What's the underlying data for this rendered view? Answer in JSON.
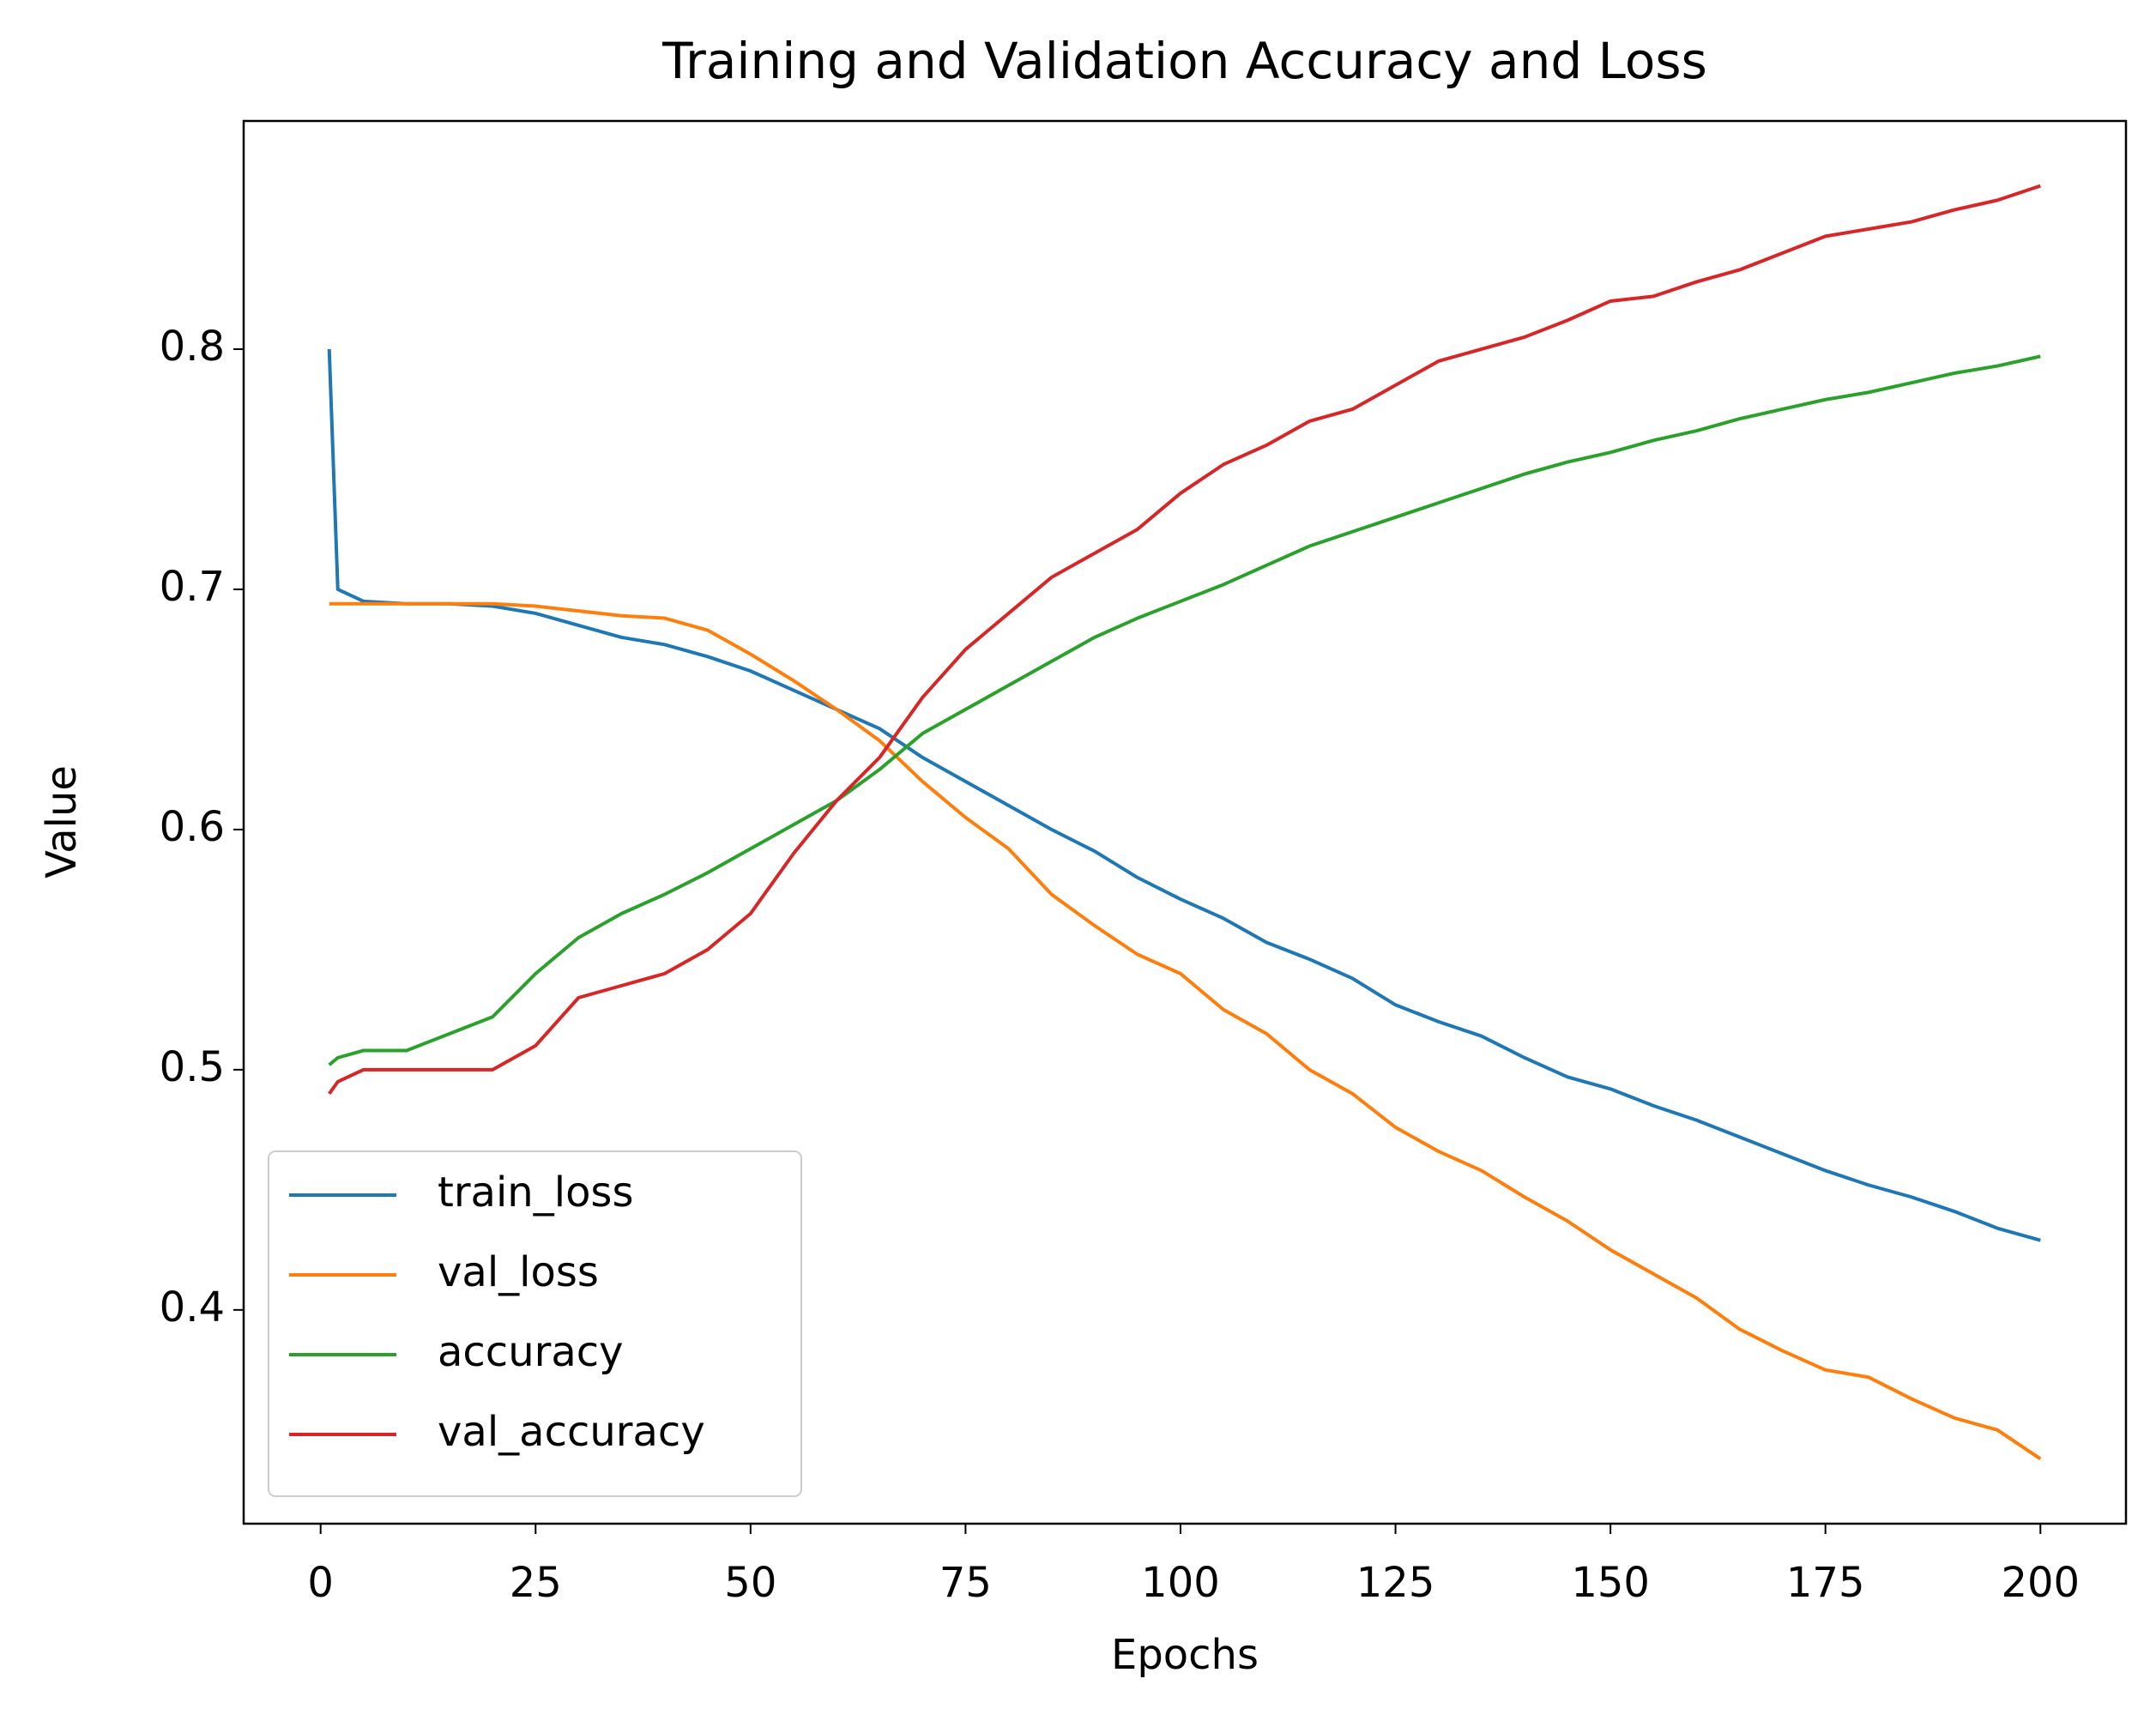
{
  "chart_data": {
    "type": "line",
    "title": "Training and Validation Accuracy and Loss",
    "x_label": "Epochs",
    "y_label": "Value",
    "x": [
      1,
      2,
      5,
      10,
      15,
      20,
      25,
      30,
      35,
      40,
      45,
      50,
      55,
      60,
      65,
      70,
      75,
      80,
      85,
      90,
      95,
      100,
      105,
      110,
      115,
      120,
      125,
      130,
      135,
      140,
      145,
      150,
      155,
      160,
      165,
      170,
      175,
      180,
      185,
      190,
      195,
      200
    ],
    "series": [
      {
        "name": "train_loss",
        "color": "#1f77b4",
        "values": [
          0.8,
          0.7,
          0.695,
          0.694,
          0.694,
          0.693,
          0.69,
          0.685,
          0.68,
          0.677,
          0.672,
          0.666,
          0.658,
          0.65,
          0.642,
          0.63,
          0.62,
          0.61,
          0.6,
          0.591,
          0.58,
          0.571,
          0.563,
          0.553,
          0.546,
          0.538,
          0.527,
          0.52,
          0.514,
          0.505,
          0.497,
          0.492,
          0.485,
          0.479,
          0.472,
          0.465,
          0.458,
          0.452,
          0.447,
          0.441,
          0.434,
          0.429
        ]
      },
      {
        "name": "val_loss",
        "color": "#ff7f0e",
        "values": [
          0.694,
          0.694,
          0.694,
          0.694,
          0.694,
          0.694,
          0.693,
          0.691,
          0.689,
          0.688,
          0.683,
          0.673,
          0.662,
          0.65,
          0.637,
          0.62,
          0.605,
          0.592,
          0.573,
          0.56,
          0.548,
          0.54,
          0.525,
          0.515,
          0.5,
          0.49,
          0.476,
          0.466,
          0.458,
          0.447,
          0.437,
          0.425,
          0.415,
          0.405,
          0.392,
          0.383,
          0.375,
          0.372,
          0.363,
          0.355,
          0.35,
          0.338
        ]
      },
      {
        "name": "accuracy",
        "color": "#2ca02c",
        "values": [
          0.502,
          0.505,
          0.508,
          0.508,
          0.515,
          0.522,
          0.54,
          0.555,
          0.565,
          0.573,
          0.582,
          0.592,
          0.602,
          0.612,
          0.625,
          0.64,
          0.65,
          0.66,
          0.67,
          0.68,
          0.688,
          0.695,
          0.702,
          0.71,
          0.718,
          0.724,
          0.73,
          0.736,
          0.742,
          0.748,
          0.753,
          0.757,
          0.762,
          0.766,
          0.771,
          0.775,
          0.779,
          0.782,
          0.786,
          0.79,
          0.793,
          0.797
        ]
      },
      {
        "name": "val_accuracy",
        "color": "#d62728",
        "values": [
          0.49,
          0.495,
          0.5,
          0.5,
          0.5,
          0.5,
          0.51,
          0.53,
          0.535,
          0.54,
          0.55,
          0.565,
          0.59,
          0.612,
          0.63,
          0.655,
          0.675,
          0.69,
          0.705,
          0.715,
          0.725,
          0.74,
          0.752,
          0.76,
          0.77,
          0.775,
          0.785,
          0.795,
          0.8,
          0.805,
          0.812,
          0.82,
          0.822,
          0.828,
          0.833,
          0.84,
          0.847,
          0.85,
          0.853,
          0.858,
          0.862,
          0.868
        ]
      }
    ],
    "xlim": [
      -8.95,
      209.95
    ],
    "xticks": [
      0,
      25,
      50,
      75,
      100,
      125,
      150,
      175,
      200
    ],
    "ylim": [
      0.311,
      0.895
    ],
    "yticks": [
      0.4,
      0.5,
      0.6,
      0.7,
      0.8
    ],
    "legend": "lower left"
  }
}
